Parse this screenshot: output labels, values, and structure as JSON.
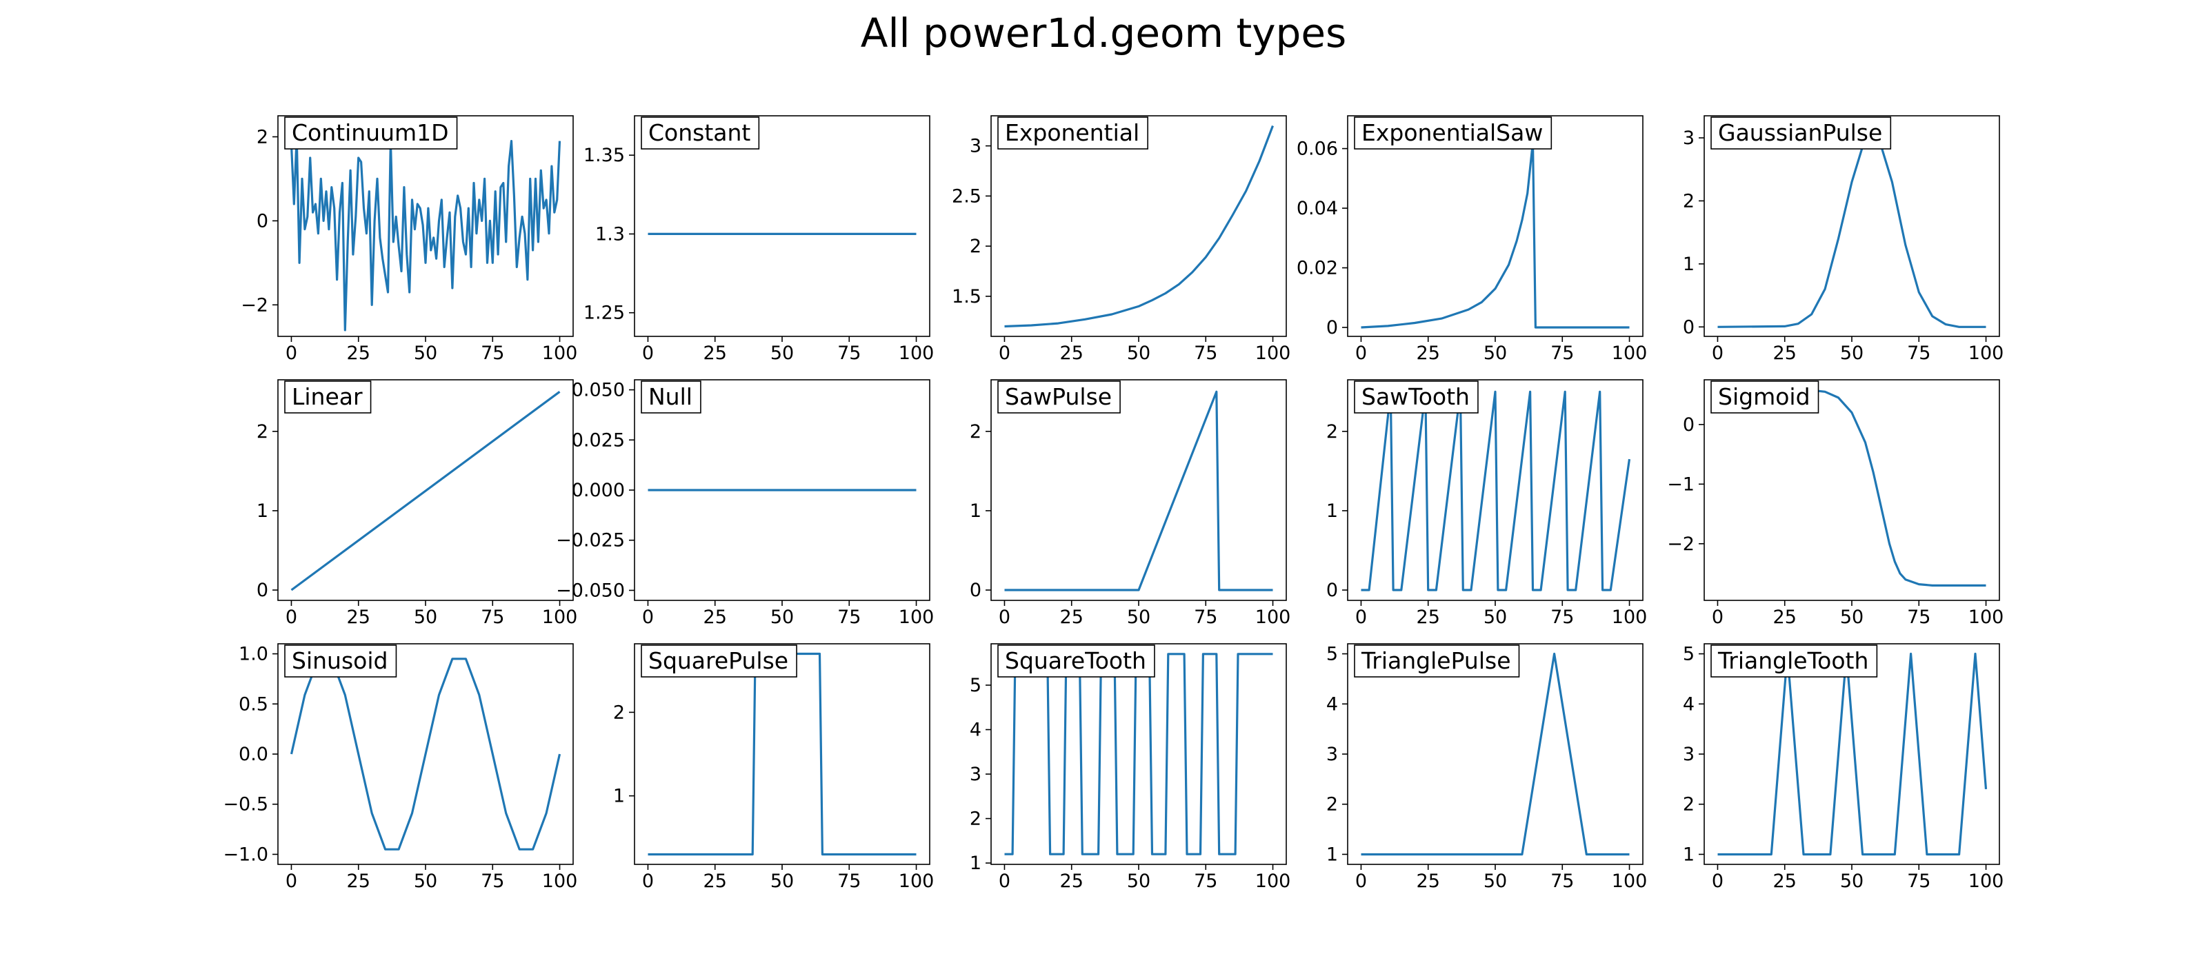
{
  "figure": {
    "title": "All power1d.geom types",
    "line_color": "#1f77b4"
  },
  "chart_data": [
    {
      "type": "line",
      "title": "Continuum1D",
      "xlim": [
        -5,
        105
      ],
      "ylim": [
        -2.75,
        2.5
      ],
      "xticks": [
        0,
        25,
        50,
        75,
        100
      ],
      "yticks": [
        -2,
        0,
        2
      ],
      "x": [
        0,
        1,
        2,
        3,
        4,
        5,
        6,
        7,
        8,
        9,
        10,
        11,
        12,
        13,
        14,
        15,
        16,
        17,
        18,
        19,
        20,
        21,
        22,
        23,
        24,
        25,
        26,
        27,
        28,
        29,
        30,
        31,
        32,
        33,
        34,
        35,
        36,
        37,
        38,
        39,
        40,
        41,
        42,
        43,
        44,
        45,
        46,
        47,
        48,
        49,
        50,
        51,
        52,
        53,
        54,
        55,
        56,
        57,
        58,
        59,
        60,
        61,
        62,
        63,
        64,
        65,
        66,
        67,
        68,
        69,
        70,
        71,
        72,
        73,
        74,
        75,
        76,
        77,
        78,
        79,
        80,
        81,
        82,
        83,
        84,
        85,
        86,
        87,
        88,
        89,
        90,
        91,
        92,
        93,
        94,
        95,
        96,
        97,
        98,
        99,
        100
      ],
      "y": [
        1.8,
        0.4,
        2.0,
        -1.0,
        1.0,
        -0.2,
        0.1,
        1.5,
        0.2,
        0.4,
        -0.3,
        1.0,
        0.0,
        0.7,
        -0.2,
        0.8,
        0.3,
        -1.4,
        0.2,
        0.9,
        -2.6,
        -0.5,
        1.2,
        -0.8,
        0.1,
        1.5,
        1.4,
        0.3,
        -0.3,
        0.7,
        -2.0,
        0.0,
        1.0,
        -0.4,
        -0.9,
        -1.3,
        -1.7,
        1.9,
        -0.5,
        0.1,
        -0.6,
        -1.2,
        0.8,
        -0.8,
        -1.7,
        0.5,
        -0.2,
        0.4,
        0.3,
        -0.1,
        -1.0,
        0.3,
        -0.7,
        -0.4,
        -0.9,
        0.0,
        0.5,
        -1.1,
        -0.4,
        0.2,
        -1.6,
        0.1,
        0.6,
        0.3,
        -0.5,
        -0.8,
        0.3,
        -1.1,
        0.9,
        -0.3,
        0.5,
        0.0,
        1.0,
        -1.0,
        0.0,
        -1.0,
        0.7,
        -0.8,
        0.8,
        0.9,
        -0.5,
        1.3,
        1.9,
        0.6,
        -1.1,
        -0.4,
        0.1,
        -0.3,
        -1.4,
        1.0,
        -0.7,
        1.0,
        -0.5,
        1.2,
        0.3,
        0.5,
        -0.3,
        1.3,
        0.2,
        0.5,
        1.9
      ]
    },
    {
      "type": "line",
      "title": "Constant",
      "xlim": [
        -5,
        105
      ],
      "ylim": [
        1.235,
        1.375
      ],
      "xticks": [
        0,
        25,
        50,
        75,
        100
      ],
      "yticks": [
        1.25,
        1.3,
        1.35
      ],
      "x": [
        0,
        100
      ],
      "y": [
        1.3,
        1.3
      ]
    },
    {
      "type": "line",
      "title": "Exponential",
      "xlim": [
        -5,
        105
      ],
      "ylim": [
        1.1,
        3.3
      ],
      "xticks": [
        0,
        25,
        50,
        75,
        100
      ],
      "yticks": [
        1.5,
        2.0,
        2.5,
        3.0
      ],
      "x": [
        0,
        10,
        20,
        30,
        40,
        50,
        55,
        60,
        65,
        70,
        75,
        80,
        85,
        90,
        95,
        100
      ],
      "y": [
        1.2,
        1.21,
        1.23,
        1.27,
        1.32,
        1.4,
        1.46,
        1.53,
        1.62,
        1.74,
        1.89,
        2.08,
        2.31,
        2.55,
        2.85,
        3.2
      ]
    },
    {
      "type": "line",
      "title": "ExponentialSaw",
      "xlim": [
        -5,
        105
      ],
      "ylim": [
        -0.003,
        0.071
      ],
      "xticks": [
        0,
        25,
        50,
        75,
        100
      ],
      "yticks": [
        0.0,
        0.02,
        0.04,
        0.06
      ],
      "x": [
        0,
        10,
        20,
        30,
        40,
        45,
        50,
        55,
        58,
        60,
        62,
        64,
        65,
        100
      ],
      "y": [
        0,
        0.0005,
        0.0015,
        0.003,
        0.006,
        0.0085,
        0.013,
        0.021,
        0.029,
        0.036,
        0.045,
        0.062,
        0.0,
        0.0
      ]
    },
    {
      "type": "line",
      "title": "GaussianPulse",
      "xlim": [
        -5,
        105
      ],
      "ylim": [
        -0.15,
        3.35
      ],
      "xticks": [
        0,
        25,
        50,
        75,
        100
      ],
      "yticks": [
        0,
        1,
        2,
        3
      ],
      "x": [
        0,
        25,
        30,
        35,
        40,
        45,
        50,
        55,
        60,
        65,
        70,
        75,
        80,
        85,
        90,
        100
      ],
      "y": [
        0,
        0.01,
        0.05,
        0.2,
        0.6,
        1.4,
        2.3,
        3.0,
        3.0,
        2.3,
        1.3,
        0.55,
        0.17,
        0.04,
        0.0,
        0.0
      ]
    },
    {
      "type": "line",
      "title": "Linear",
      "xlim": [
        -5,
        105
      ],
      "ylim": [
        -0.13,
        2.65
      ],
      "xticks": [
        0,
        25,
        50,
        75,
        100
      ],
      "yticks": [
        0,
        1,
        2
      ],
      "x": [
        0,
        100
      ],
      "y": [
        0,
        2.5
      ]
    },
    {
      "type": "line",
      "title": "Null",
      "xlim": [
        -5,
        105
      ],
      "ylim": [
        -0.055,
        0.055
      ],
      "xticks": [
        0,
        25,
        50,
        75,
        100
      ],
      "yticks": [
        -0.05,
        -0.025,
        0.0,
        0.025,
        0.05
      ],
      "ytick_labels": [
        "−0.050",
        "−0.025",
        "0.000",
        "0.025",
        "0.050"
      ],
      "x": [
        0,
        100
      ],
      "y": [
        0,
        0
      ]
    },
    {
      "type": "line",
      "title": "SawPulse",
      "xlim": [
        -5,
        105
      ],
      "ylim": [
        -0.13,
        2.65
      ],
      "xticks": [
        0,
        25,
        50,
        75,
        100
      ],
      "yticks": [
        0,
        1,
        2
      ],
      "x": [
        0,
        50,
        79,
        80,
        100
      ],
      "y": [
        0,
        0,
        2.5,
        0,
        0
      ]
    },
    {
      "type": "line",
      "title": "SawTooth",
      "xlim": [
        -5,
        105
      ],
      "ylim": [
        -0.13,
        2.65
      ],
      "xticks": [
        0,
        25,
        50,
        75,
        100
      ],
      "yticks": [
        0,
        1,
        2
      ],
      "x": [
        0,
        3,
        11,
        12,
        15,
        24,
        25,
        28,
        37,
        38,
        41,
        50,
        51,
        54,
        63,
        64,
        67,
        76,
        77,
        80,
        89,
        90,
        93,
        100
      ],
      "y": [
        0,
        0,
        2.5,
        0,
        0,
        2.5,
        0,
        0,
        2.5,
        0,
        0,
        2.5,
        0,
        0,
        2.5,
        0,
        0,
        2.5,
        0,
        0,
        2.5,
        0,
        0,
        1.65
      ]
    },
    {
      "type": "line",
      "title": "Sigmoid",
      "xlim": [
        -5,
        105
      ],
      "ylim": [
        -2.95,
        0.75
      ],
      "xticks": [
        0,
        25,
        50,
        75,
        100
      ],
      "yticks": [
        -2,
        -1,
        0
      ],
      "ytick_labels": [
        "−2",
        "−1",
        "0"
      ],
      "x": [
        0,
        30,
        40,
        45,
        50,
        55,
        58,
        60,
        62,
        64,
        66,
        68,
        70,
        75,
        80,
        100
      ],
      "y": [
        0.6,
        0.6,
        0.55,
        0.45,
        0.2,
        -0.3,
        -0.8,
        -1.2,
        -1.6,
        -2.0,
        -2.3,
        -2.5,
        -2.6,
        -2.68,
        -2.7,
        -2.7
      ]
    },
    {
      "type": "line",
      "title": "Sinusoid",
      "xlim": [
        -5,
        105
      ],
      "ylim": [
        -1.1,
        1.1
      ],
      "xticks": [
        0,
        25,
        50,
        75,
        100
      ],
      "yticks": [
        -1.0,
        -0.5,
        0.0,
        0.5,
        1.0
      ],
      "ytick_labels": [
        "−1.0",
        "−0.5",
        "0.0",
        "0.5",
        "1.0"
      ],
      "x": [
        0,
        5,
        10,
        15,
        20,
        25,
        30,
        35,
        40,
        45,
        50,
        55,
        60,
        65,
        70,
        75,
        80,
        85,
        90,
        95,
        100
      ],
      "y": [
        0,
        0.59,
        0.95,
        0.95,
        0.59,
        0,
        -0.59,
        -0.95,
        -0.95,
        -0.59,
        0,
        0.59,
        0.95,
        0.95,
        0.59,
        0,
        -0.59,
        -0.95,
        -0.95,
        -0.59,
        0
      ]
    },
    {
      "type": "line",
      "title": "SquarePulse",
      "xlim": [
        -5,
        105
      ],
      "ylim": [
        0.18,
        2.82
      ],
      "xticks": [
        0,
        25,
        50,
        75,
        100
      ],
      "yticks": [
        1,
        2
      ],
      "x": [
        0,
        39,
        40,
        64,
        65,
        100
      ],
      "y": [
        0.3,
        0.3,
        2.7,
        2.7,
        0.3,
        0.3
      ]
    },
    {
      "type": "line",
      "title": "SquareTooth",
      "xlim": [
        -5,
        105
      ],
      "ylim": [
        0.97,
        5.93
      ],
      "xticks": [
        0,
        25,
        50,
        75,
        100
      ],
      "yticks": [
        1,
        2,
        3,
        4,
        5
      ],
      "x": [
        0,
        3,
        4,
        16,
        17,
        22,
        23,
        28,
        29,
        35,
        36,
        41,
        42,
        48,
        49,
        54,
        55,
        60,
        61,
        67,
        68,
        73,
        74,
        79,
        80,
        86,
        87,
        92,
        93,
        100
      ],
      "y": [
        1.2,
        1.2,
        5.7,
        5.7,
        1.2,
        1.2,
        5.7,
        5.7,
        1.2,
        1.2,
        5.7,
        5.7,
        1.2,
        1.2,
        5.7,
        5.7,
        1.2,
        1.2,
        5.7,
        5.7,
        1.2,
        1.2,
        5.7,
        5.7,
        1.2,
        1.2,
        5.7,
        5.7,
        5.7,
        5.7
      ]
    },
    {
      "type": "line",
      "title": "TrianglePulse",
      "xlim": [
        -5,
        105
      ],
      "ylim": [
        0.8,
        5.2
      ],
      "xticks": [
        0,
        25,
        50,
        75,
        100
      ],
      "yticks": [
        1,
        2,
        3,
        4,
        5
      ],
      "x": [
        0,
        60,
        72,
        84,
        100
      ],
      "y": [
        1,
        1,
        5,
        1,
        1
      ]
    },
    {
      "type": "line",
      "title": "TriangleTooth",
      "xlim": [
        -5,
        105
      ],
      "ylim": [
        0.8,
        5.2
      ],
      "xticks": [
        0,
        25,
        50,
        75,
        100
      ],
      "yticks": [
        1,
        2,
        3,
        4,
        5
      ],
      "x": [
        0,
        20,
        26,
        32,
        36,
        42,
        48,
        54,
        60,
        66,
        72,
        78,
        84,
        90,
        96,
        100
      ],
      "y": [
        1,
        1,
        5,
        1,
        1,
        1,
        5,
        1,
        1,
        1,
        5,
        1,
        1,
        1,
        5,
        2.3
      ]
    }
  ]
}
